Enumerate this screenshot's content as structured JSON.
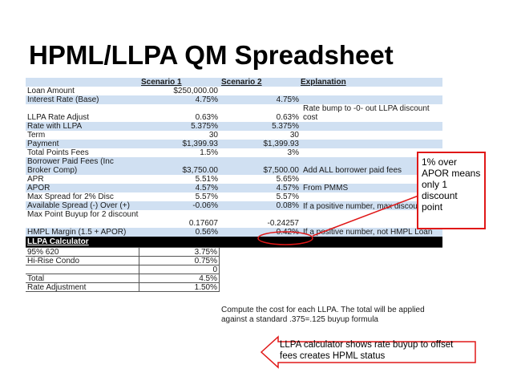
{
  "title": "HPML/LLPA QM Spreadsheet",
  "sheet": {
    "headers": [
      "",
      "Scenario 1",
      "Scenario 2",
      "Explanation"
    ],
    "rows": [
      {
        "label": "Loan Amount",
        "s1": "$250,000.00",
        "s2": "",
        "exp": ""
      },
      {
        "label": "Interest Rate (Base)",
        "s1": "4.75%",
        "s2": "4.75%",
        "exp": ""
      },
      {
        "label": "LLPA Rate Adjust",
        "s1": "0.63%",
        "s2": "0.63%",
        "exp": "Rate bump to -0- out LLPA discount cost"
      },
      {
        "label": "Rate with LLPA",
        "s1": "5.375%",
        "s2": "5.375%",
        "exp": ""
      },
      {
        "label": "Term",
        "s1": "30",
        "s2": "30",
        "exp": ""
      },
      {
        "label": "Payment",
        "s1": "$1,399.93",
        "s2": "$1,399.93",
        "exp": ""
      },
      {
        "label": "Total Points Fees",
        "s1": "1.5%",
        "s2": "3%",
        "exp": ""
      },
      {
        "label": "Borrower Paid Fees (Inc Broker Comp)",
        "s1": "$3,750.00",
        "s2": "$7,500.00",
        "exp": "Add ALL borrower paid fees"
      },
      {
        "label": "APR",
        "s1": "5.51%",
        "s2": "5.65%",
        "exp": ""
      },
      {
        "label": "APOR",
        "s1": "4.57%",
        "s2": "4.57%",
        "exp": "From PMMS"
      },
      {
        "label": "Max Spread for 2% Disc",
        "s1": "5.57%",
        "s2": "5.57%",
        "exp": ""
      },
      {
        "label": "Available Spread (-) Over (+)",
        "s1": "-0.06%",
        "s2": "0.08%",
        "exp": "If a positive number, max discount is 1"
      },
      {
        "label": "Max Point Buyup for 2 discount",
        "s1": "0.17607",
        "s2": "-0.24257",
        "exp": ""
      },
      {
        "label": "HMPL Margin (1.5 + APOR)",
        "s1": "0.56%",
        "s2": "0.42%",
        "exp": "If a positive number, not HMPL Loan"
      }
    ]
  },
  "llpa": {
    "heading": "LLPA Calculator",
    "rows": [
      {
        "label": "95% 620",
        "value": "3.75%"
      },
      {
        "label": "Hi-Rise Condo",
        "value": "0.75%"
      },
      {
        "label": "",
        "value": "0"
      },
      {
        "label": "Total",
        "value": "4.5%"
      },
      {
        "label": "Rate Adjustment",
        "value": "1.50%"
      }
    ],
    "note": "Compute the cost for each LLPA. The total will be applied against a standard .375=.125 buyup formula"
  },
  "callouts": {
    "apor": "1% over APOR means only 1 discount point",
    "calculator": "LLPA calculator shows rate buyup to offset fees creates HPML status"
  },
  "colors": {
    "row_blue": "#d0e0f2",
    "callout_red": "#e01818",
    "header_black": "#000000"
  }
}
